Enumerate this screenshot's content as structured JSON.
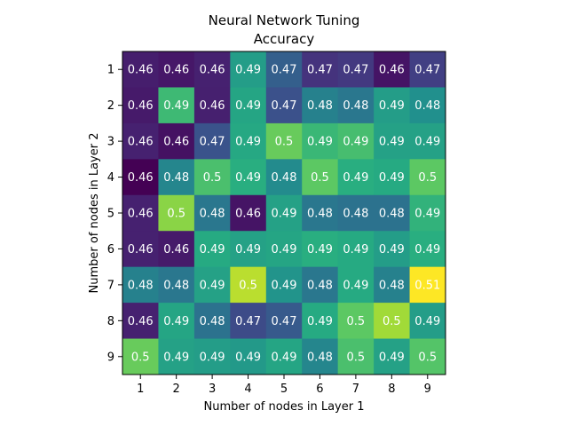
{
  "chart_data": {
    "type": "heatmap",
    "title": "Neural Network Tuning",
    "subtitle": "Accuracy",
    "xlabel": "Number of nodes in Layer 1",
    "ylabel": "Number of nodes in Layer 2",
    "x_categories": [
      "1",
      "2",
      "3",
      "4",
      "5",
      "6",
      "7",
      "8",
      "9"
    ],
    "y_categories": [
      "1",
      "2",
      "3",
      "4",
      "5",
      "6",
      "7",
      "8",
      "9"
    ],
    "values": [
      [
        0.4625,
        0.4615,
        0.463,
        0.487,
        0.474,
        0.466,
        0.467,
        0.461,
        0.468
      ],
      [
        0.462,
        0.4935,
        0.4628,
        0.489,
        0.471,
        0.481,
        0.479,
        0.487,
        0.484
      ],
      [
        0.463,
        0.4605,
        0.4715,
        0.4895,
        0.498,
        0.493,
        0.4945,
        0.488,
        0.488
      ],
      [
        0.458,
        0.482,
        0.495,
        0.491,
        0.483,
        0.497,
        0.491,
        0.49,
        0.497
      ],
      [
        0.463,
        0.501,
        0.479,
        0.461,
        0.488,
        0.479,
        0.478,
        0.478,
        0.492
      ],
      [
        0.463,
        0.462,
        0.49,
        0.488,
        0.489,
        0.491,
        0.49,
        0.487,
        0.491
      ],
      [
        0.481,
        0.479,
        0.488,
        0.505,
        0.485,
        0.479,
        0.49,
        0.481,
        0.51
      ],
      [
        0.463,
        0.489,
        0.478,
        0.47,
        0.473,
        0.49,
        0.497,
        0.503,
        0.487
      ],
      [
        0.498,
        0.488,
        0.487,
        0.486,
        0.489,
        0.482,
        0.495,
        0.488,
        0.496
      ]
    ],
    "cell_labels": [
      [
        "0.46",
        "0.46",
        "0.46",
        "0.49",
        "0.47",
        "0.47",
        "0.47",
        "0.46",
        "0.47"
      ],
      [
        "0.46",
        "0.49",
        "0.46",
        "0.49",
        "0.47",
        "0.48",
        "0.48",
        "0.49",
        "0.48"
      ],
      [
        "0.46",
        "0.46",
        "0.47",
        "0.49",
        "0.5",
        "0.49",
        "0.49",
        "0.49",
        "0.49"
      ],
      [
        "0.46",
        "0.48",
        "0.5",
        "0.49",
        "0.48",
        "0.5",
        "0.49",
        "0.49",
        "0.5"
      ],
      [
        "0.46",
        "0.5",
        "0.48",
        "0.46",
        "0.49",
        "0.48",
        "0.48",
        "0.48",
        "0.49"
      ],
      [
        "0.46",
        "0.46",
        "0.49",
        "0.49",
        "0.49",
        "0.49",
        "0.49",
        "0.49",
        "0.49"
      ],
      [
        "0.48",
        "0.48",
        "0.49",
        "0.5",
        "0.49",
        "0.48",
        "0.49",
        "0.48",
        "0.51"
      ],
      [
        "0.46",
        "0.49",
        "0.48",
        "0.47",
        "0.47",
        "0.49",
        "0.5",
        "0.5",
        "0.49"
      ],
      [
        "0.5",
        "0.49",
        "0.49",
        "0.49",
        "0.49",
        "0.48",
        "0.5",
        "0.49",
        "0.5"
      ]
    ],
    "colormap": "viridis",
    "value_range": [
      0.458,
      0.51
    ],
    "grid": false,
    "legend": "none"
  }
}
